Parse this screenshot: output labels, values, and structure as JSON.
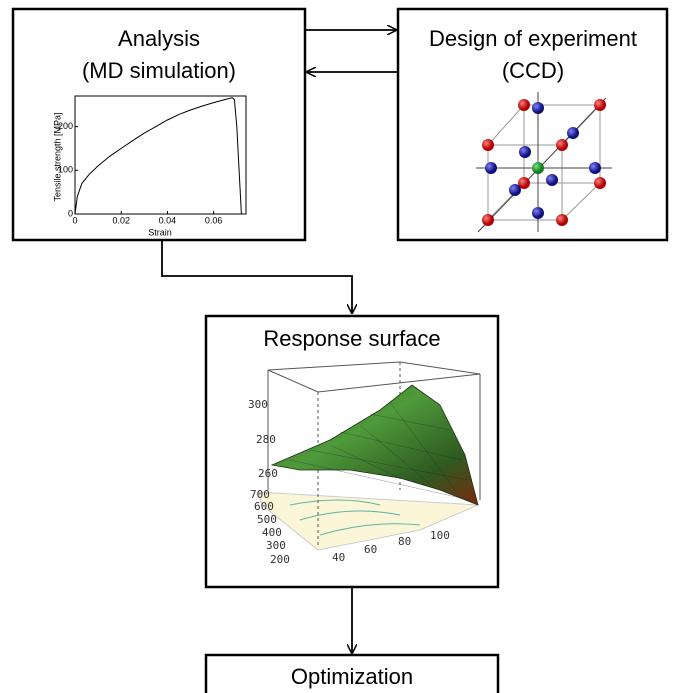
{
  "analysis": {
    "title": [
      "Analysis",
      "(MD simulation)"
    ],
    "plot": {
      "type": "line",
      "y_label": "Tensile strength [MPa]",
      "x_label": "Strain",
      "x": [
        0,
        0.001,
        0.003,
        0.006,
        0.01,
        0.015,
        0.02,
        0.025,
        0.03,
        0.035,
        0.04,
        0.045,
        0.05,
        0.055,
        0.06,
        0.065,
        0.068,
        0.069,
        0.07,
        0.071,
        0.072
      ],
      "y": [
        0,
        40,
        70,
        90,
        110,
        132,
        150,
        168,
        185,
        200,
        215,
        228,
        238,
        247,
        255,
        262,
        266,
        262,
        200,
        100,
        0
      ],
      "xlim": [
        0,
        0.074
      ],
      "ylim": [
        0,
        270
      ],
      "xticks": [
        0,
        0.02,
        0.04,
        0.06
      ],
      "yticks": [
        0,
        100,
        200
      ]
    }
  },
  "design": {
    "title": [
      "Design of experiment",
      "(CCD)"
    ]
  },
  "response": {
    "title": "Response surface",
    "z_ticks": [
      "300",
      "280",
      "260"
    ],
    "y_ticks": [
      "700",
      "600",
      "500",
      "400",
      "300",
      "200"
    ],
    "x_ticks": [
      "40",
      "60",
      "80",
      "100"
    ]
  },
  "optimization": {
    "title": "Optimization"
  }
}
